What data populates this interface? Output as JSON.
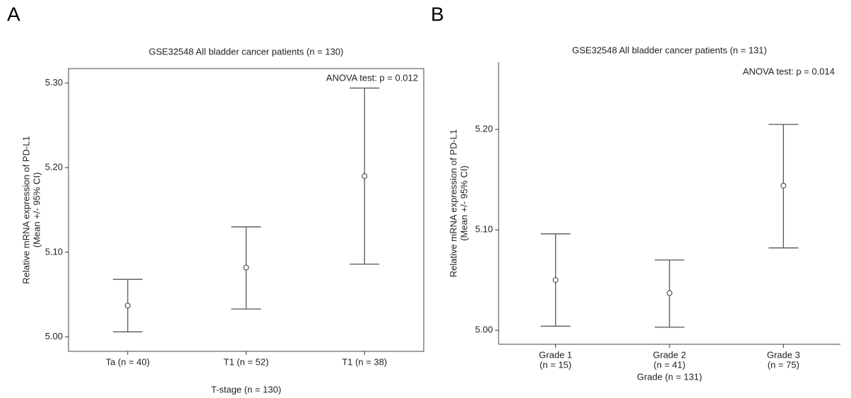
{
  "chart_data": [
    {
      "type": "errorbar",
      "panel": "A",
      "title": "GSE32548 All bladder cancer patients (n = 130)",
      "annotation": "ANOVA test:  p = 0.012",
      "ylabel": [
        "Relative mRNA expression of PD-L1",
        "(Mean +/- 95% CI)"
      ],
      "xlabel": "T-stage (n = 130)",
      "categories": [
        "Ta (n = 40)",
        "T1 (n = 52)",
        "T1 (n = 38)"
      ],
      "values": [
        5.037,
        5.082,
        5.19
      ],
      "lower": [
        5.006,
        5.033,
        5.086
      ],
      "upper": [
        5.068,
        5.13,
        5.294
      ],
      "color": "#555555",
      "ylim": [
        4.983,
        5.317
      ],
      "yticks": [
        {
          "value": 5.0,
          "label": "5.00"
        },
        {
          "value": 5.1,
          "label": "5.10"
        },
        {
          "value": 5.2,
          "label": "5.20"
        },
        {
          "value": 5.3,
          "label": "5.30"
        }
      ]
    },
    {
      "type": "errorbar",
      "panel": "B",
      "title": "GSE32548 All bladder cancer patients (n = 131)",
      "annotation": "ANOVA test:  p = 0.014",
      "ylabel": [
        "Relative mRNA expression of PD-L1",
        "(Mean +/- 95% CI)"
      ],
      "xlabel": "Grade (n = 131)",
      "categories": [
        "Grade 1",
        "Grade 2",
        "Grade 3"
      ],
      "category_counts": [
        "(n = 15)",
        "(n = 41)",
        "(n = 75)"
      ],
      "values": [
        5.05,
        5.037,
        5.144
      ],
      "lower": [
        5.004,
        5.003,
        5.082
      ],
      "upper": [
        5.096,
        5.07,
        5.205
      ],
      "color": "#555555",
      "ylim": [
        4.986,
        5.267
      ],
      "yticks": [
        {
          "value": 5.0,
          "label": "5.00"
        },
        {
          "value": 5.1,
          "label": "5.10"
        },
        {
          "value": 5.2,
          "label": "5.20"
        }
      ]
    }
  ]
}
